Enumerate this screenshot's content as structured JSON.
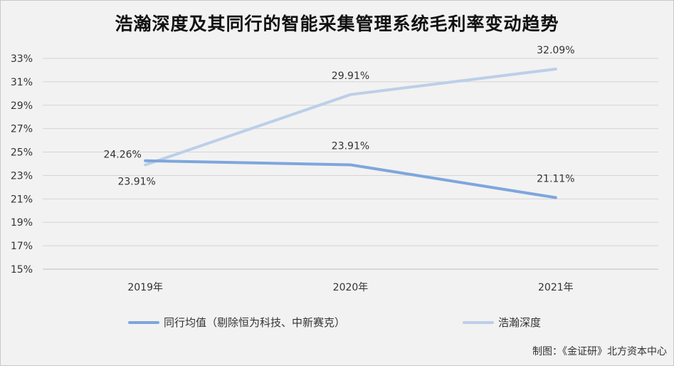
{
  "title": "浩瀚深度及其同行的智能采集管理系统毛利率变动趋势",
  "source": "制图：《金证研》北方资本中心",
  "colors": {
    "peer": "#7ea6dc",
    "hao": "#bccfe8"
  },
  "chart_data": {
    "type": "line",
    "title": "浩瀚深度及其同行的智能采集管理系统毛利率变动趋势",
    "categories": [
      "2019年",
      "2020年",
      "2021年"
    ],
    "ylim": [
      15,
      33
    ],
    "yticks": [
      15,
      17,
      19,
      21,
      23,
      25,
      27,
      29,
      31,
      33
    ],
    "ytick_labels": [
      "15%",
      "17%",
      "19%",
      "21%",
      "23%",
      "25%",
      "27%",
      "29%",
      "31%",
      "33%"
    ],
    "grid": true,
    "legend_position": "bottom",
    "series": [
      {
        "name": "同行均值（剔除恒为科技、中新赛克）",
        "values": [
          24.26,
          23.91,
          21.11
        ],
        "labels": [
          "24.26%",
          "23.91%",
          "21.11%"
        ]
      },
      {
        "name": "浩瀚深度",
        "values": [
          23.91,
          29.91,
          32.09
        ],
        "labels": [
          "23.91%",
          "29.91%",
          "32.09%"
        ]
      }
    ]
  }
}
